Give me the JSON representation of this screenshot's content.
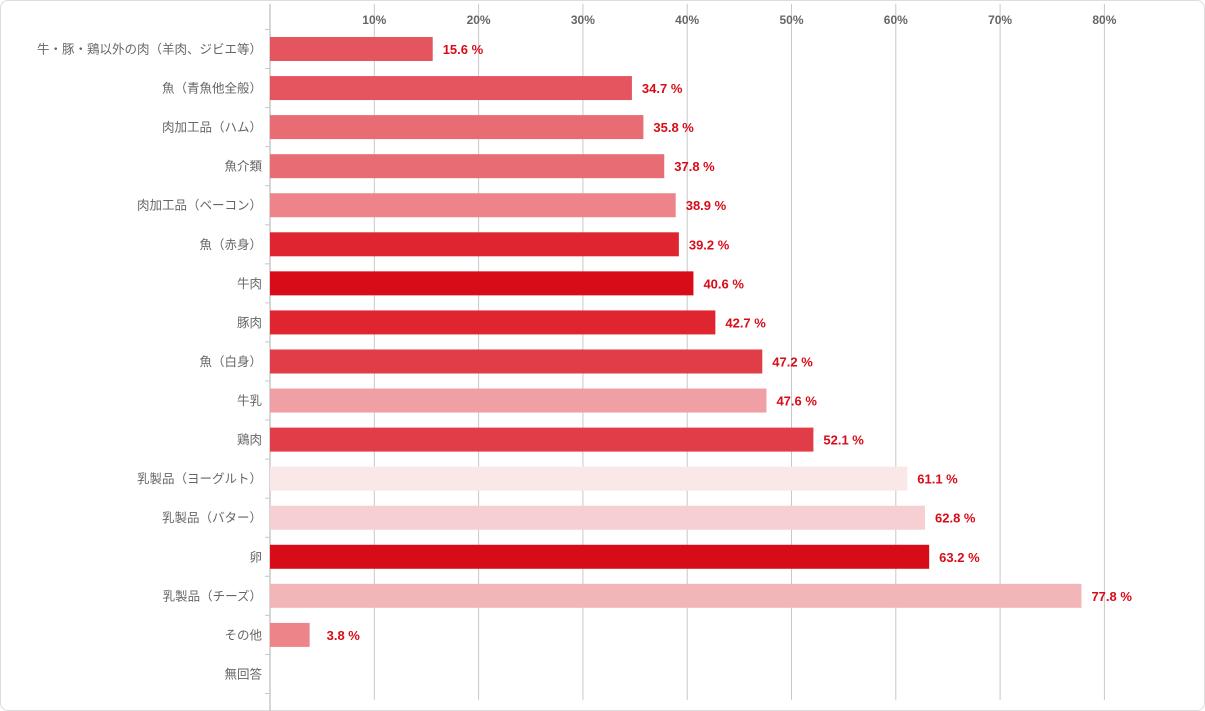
{
  "chart_data": {
    "type": "bar",
    "orientation": "horizontal",
    "title": "",
    "xlabel": "",
    "ylabel": "",
    "xlim": [
      0,
      85
    ],
    "x_ticks": [
      "10%",
      "20%",
      "30%",
      "40%",
      "50%",
      "60%",
      "70%",
      "80%"
    ],
    "x_tick_values": [
      10,
      20,
      30,
      40,
      50,
      60,
      70,
      80
    ],
    "grid": true,
    "categories": [
      "牛・豚・鶏以外の肉（羊肉、ジビエ等）",
      "魚（青魚他全般）",
      "肉加工品（ハム）",
      "魚介類",
      "肉加工品（ベーコン）",
      "魚（赤身）",
      "牛肉",
      "豚肉",
      "魚（白身）",
      "牛乳",
      "鶏肉",
      "乳製品（ヨーグルト）",
      "乳製品（バター）",
      "卵",
      "乳製品（チーズ）",
      "その他",
      "無回答"
    ],
    "values": [
      15.6,
      34.7,
      35.8,
      37.8,
      38.9,
      39.2,
      40.6,
      42.7,
      47.2,
      47.6,
      52.1,
      61.1,
      62.8,
      63.2,
      77.8,
      3.8,
      null
    ],
    "value_labels": [
      "15.6 %",
      "34.7 %",
      "35.8 %",
      "37.8 %",
      "38.9 %",
      "39.2 %",
      "40.6 %",
      "42.7 %",
      "47.2 %",
      "47.6 %",
      "52.1 %",
      "61.1 %",
      "62.8 %",
      "63.2 %",
      "77.8 %",
      "3.8 %",
      ""
    ],
    "colors": [
      "#e55560",
      "#e55560",
      "#e86c74",
      "#e86c74",
      "#ec848a",
      "#de2530",
      "#d80c18",
      "#de2530",
      "#e13d48",
      "#f0a0a5",
      "#e13d48",
      "#fae8e9",
      "#f6cfd3",
      "#d80c18",
      "#f2b6b9",
      "#ec848a",
      "#ffffff"
    ],
    "value_label_color": "#d80c18"
  }
}
